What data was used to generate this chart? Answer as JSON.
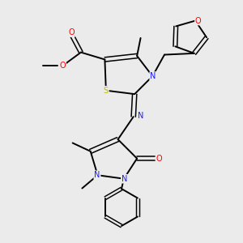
{
  "background_color": "#ebebeb",
  "atom_colors": {
    "C": "#000000",
    "N": "#1a1aff",
    "O": "#ff0000",
    "S": "#bbbb00",
    "H": "#000000"
  },
  "figsize": [
    3.0,
    3.0
  ],
  "dpi": 100
}
